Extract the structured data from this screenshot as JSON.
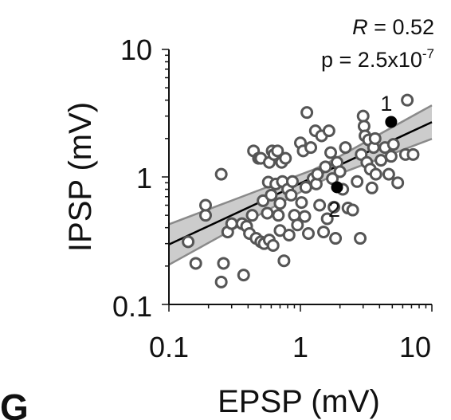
{
  "panel_label": "G",
  "chart_data": {
    "type": "scatter",
    "xscale": "log",
    "yscale": "log",
    "xlim": [
      0.1,
      10
    ],
    "ylim": [
      0.1,
      10
    ],
    "xlabel": "EPSP (mV)",
    "ylabel": "IPSP (mV)",
    "x_ticks": [
      "0.1",
      "1",
      "10"
    ],
    "y_ticks": [
      "0.1",
      "1",
      "10"
    ],
    "annotations": {
      "r_label": "R",
      "r_value": " = 0.52",
      "p_prefix": "p = 2.5x10",
      "p_exponent": "-7"
    },
    "fit": {
      "slope": 0.48,
      "intercept_log10": -0.05,
      "band_log10": 0.1
    },
    "colors": {
      "marker_edge": "#555555",
      "marker_fill": "#ffffff",
      "highlight": "#000000",
      "band": "#cccccc",
      "fit_line": "#000000"
    },
    "highlighted": [
      {
        "label": "1",
        "x": 4.9,
        "y": 2.7
      },
      {
        "label": "2",
        "x": 1.9,
        "y": 0.83
      }
    ],
    "points": [
      {
        "x": 0.14,
        "y": 0.31
      },
      {
        "x": 0.16,
        "y": 0.21
      },
      {
        "x": 0.19,
        "y": 0.5
      },
      {
        "x": 0.19,
        "y": 0.6
      },
      {
        "x": 0.25,
        "y": 1.05
      },
      {
        "x": 0.25,
        "y": 0.15
      },
      {
        "x": 0.26,
        "y": 0.21
      },
      {
        "x": 0.28,
        "y": 0.37
      },
      {
        "x": 0.3,
        "y": 0.43
      },
      {
        "x": 0.36,
        "y": 0.43
      },
      {
        "x": 0.37,
        "y": 0.17
      },
      {
        "x": 0.39,
        "y": 0.41
      },
      {
        "x": 0.41,
        "y": 0.36
      },
      {
        "x": 0.43,
        "y": 0.5
      },
      {
        "x": 0.44,
        "y": 1.6
      },
      {
        "x": 0.46,
        "y": 0.33
      },
      {
        "x": 0.48,
        "y": 1.4
      },
      {
        "x": 0.5,
        "y": 1.4
      },
      {
        "x": 0.5,
        "y": 0.31
      },
      {
        "x": 0.52,
        "y": 0.65
      },
      {
        "x": 0.53,
        "y": 0.3
      },
      {
        "x": 0.56,
        "y": 0.52
      },
      {
        "x": 0.57,
        "y": 0.91
      },
      {
        "x": 0.58,
        "y": 1.3
      },
      {
        "x": 0.58,
        "y": 0.32
      },
      {
        "x": 0.6,
        "y": 0.72
      },
      {
        "x": 0.61,
        "y": 1.6
      },
      {
        "x": 0.62,
        "y": 0.29
      },
      {
        "x": 0.63,
        "y": 1.5
      },
      {
        "x": 0.65,
        "y": 0.88
      },
      {
        "x": 0.67,
        "y": 1.6
      },
      {
        "x": 0.68,
        "y": 0.5
      },
      {
        "x": 0.7,
        "y": 0.62
      },
      {
        "x": 0.7,
        "y": 0.38
      },
      {
        "x": 0.72,
        "y": 1.3
      },
      {
        "x": 0.73,
        "y": 0.92
      },
      {
        "x": 0.75,
        "y": 0.22
      },
      {
        "x": 0.77,
        "y": 1.4
      },
      {
        "x": 0.8,
        "y": 0.8
      },
      {
        "x": 0.82,
        "y": 0.35
      },
      {
        "x": 0.85,
        "y": 0.72
      },
      {
        "x": 0.87,
        "y": 0.92
      },
      {
        "x": 0.9,
        "y": 0.5
      },
      {
        "x": 0.95,
        "y": 0.42
      },
      {
        "x": 1.0,
        "y": 1.85
      },
      {
        "x": 1.02,
        "y": 0.63
      },
      {
        "x": 1.05,
        "y": 1.6
      },
      {
        "x": 1.08,
        "y": 0.49
      },
      {
        "x": 1.1,
        "y": 0.83
      },
      {
        "x": 1.12,
        "y": 3.2
      },
      {
        "x": 1.15,
        "y": 0.36
      },
      {
        "x": 1.2,
        "y": 1.7
      },
      {
        "x": 1.25,
        "y": 0.97
      },
      {
        "x": 1.3,
        "y": 2.3
      },
      {
        "x": 1.32,
        "y": 0.88
      },
      {
        "x": 1.35,
        "y": 1.05
      },
      {
        "x": 1.4,
        "y": 0.6
      },
      {
        "x": 1.45,
        "y": 2.1
      },
      {
        "x": 1.5,
        "y": 0.37
      },
      {
        "x": 1.55,
        "y": 1.2
      },
      {
        "x": 1.6,
        "y": 0.47
      },
      {
        "x": 1.65,
        "y": 2.3
      },
      {
        "x": 1.7,
        "y": 1.55
      },
      {
        "x": 1.75,
        "y": 0.97
      },
      {
        "x": 1.8,
        "y": 0.58
      },
      {
        "x": 1.85,
        "y": 0.33
      },
      {
        "x": 1.9,
        "y": 1.3
      },
      {
        "x": 2.0,
        "y": 1.1
      },
      {
        "x": 2.1,
        "y": 0.8
      },
      {
        "x": 2.2,
        "y": 1.7
      },
      {
        "x": 2.3,
        "y": 0.57
      },
      {
        "x": 2.5,
        "y": 0.55
      },
      {
        "x": 2.7,
        "y": 0.92
      },
      {
        "x": 2.85,
        "y": 0.33
      },
      {
        "x": 2.9,
        "y": 1.5
      },
      {
        "x": 3.0,
        "y": 3.0
      },
      {
        "x": 3.05,
        "y": 2.5
      },
      {
        "x": 3.1,
        "y": 2.1
      },
      {
        "x": 3.2,
        "y": 1.3
      },
      {
        "x": 3.3,
        "y": 1.95
      },
      {
        "x": 3.4,
        "y": 1.15
      },
      {
        "x": 3.5,
        "y": 0.82
      },
      {
        "x": 3.6,
        "y": 1.7
      },
      {
        "x": 3.7,
        "y": 2.0
      },
      {
        "x": 3.75,
        "y": 1.05
      },
      {
        "x": 4.1,
        "y": 1.35
      },
      {
        "x": 4.4,
        "y": 1.7
      },
      {
        "x": 4.7,
        "y": 1.05
      },
      {
        "x": 4.9,
        "y": 1.45
      },
      {
        "x": 5.1,
        "y": 1.8
      },
      {
        "x": 5.5,
        "y": 0.9
      },
      {
        "x": 6.3,
        "y": 1.5
      },
      {
        "x": 6.5,
        "y": 4.0
      },
      {
        "x": 7.2,
        "y": 1.5
      }
    ]
  }
}
